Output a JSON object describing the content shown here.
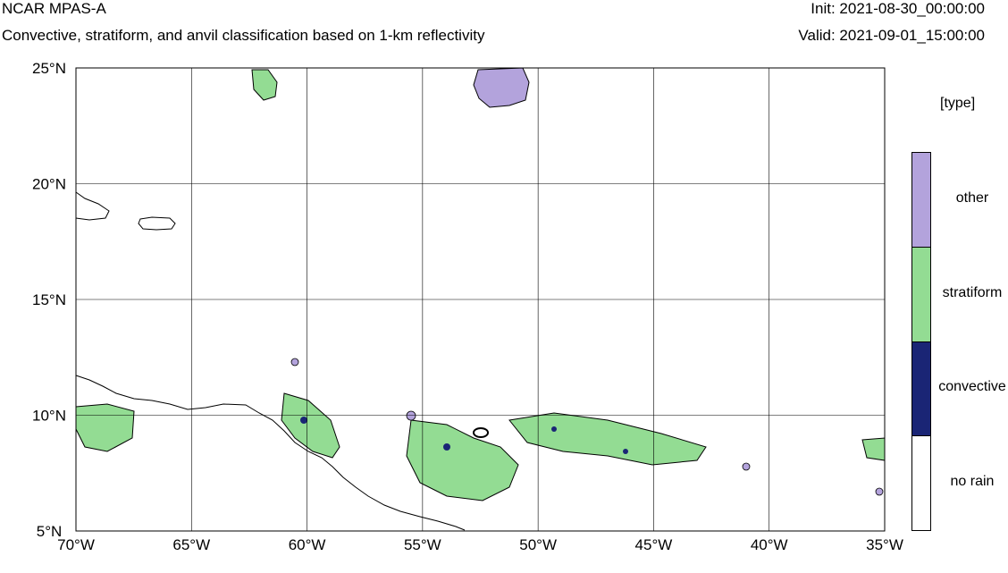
{
  "header": {
    "model": "NCAR MPAS-A",
    "description": "Convective, stratiform, and anvil classification based on 1-km reflectivity",
    "init": "Init: 2021-08-30_00:00:00",
    "valid": "Valid: 2021-09-01_15:00:00"
  },
  "map": {
    "lon_ticks": [
      {
        "value": -70,
        "label": "70°W"
      },
      {
        "value": -65,
        "label": "65°W"
      },
      {
        "value": -60,
        "label": "60°W"
      },
      {
        "value": -55,
        "label": "55°W"
      },
      {
        "value": -50,
        "label": "50°W"
      },
      {
        "value": -45,
        "label": "45°W"
      },
      {
        "value": -40,
        "label": "40°W"
      },
      {
        "value": -35,
        "label": "35°W"
      }
    ],
    "lat_ticks": [
      {
        "value": 25,
        "label": "25°N"
      },
      {
        "value": 20,
        "label": "20°N"
      },
      {
        "value": 15,
        "label": "15°N"
      },
      {
        "value": 10,
        "label": "10°N"
      },
      {
        "value": 5,
        "label": "5°N"
      }
    ],
    "lon_range": [
      -70,
      -35
    ],
    "lat_range": [
      5,
      25
    ],
    "grid": true
  },
  "legend": {
    "title": "[type]",
    "entries": [
      {
        "label": "other",
        "color": "#b3a3dc"
      },
      {
        "label": "stratiform",
        "color": "#93dc93"
      },
      {
        "label": "convective",
        "color": "#1a2575"
      },
      {
        "label": "no rain",
        "color": "#ffffff"
      }
    ]
  }
}
